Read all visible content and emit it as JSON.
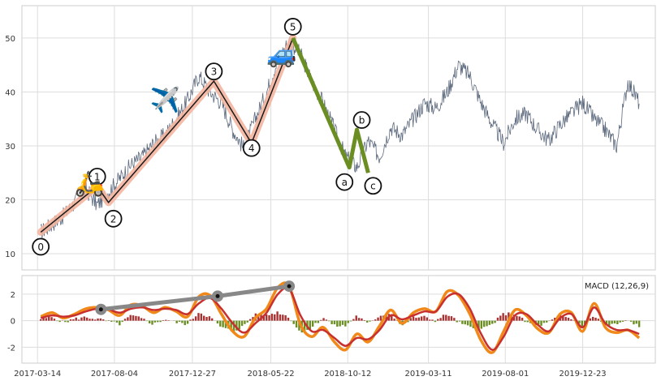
{
  "chart_data": [
    {
      "type": "line",
      "title": "",
      "xlabel": "",
      "ylabel": "",
      "ylim": [
        7,
        56
      ],
      "yticks": [
        10,
        20,
        30,
        40,
        50
      ],
      "grid": true,
      "series": [
        {
          "role": "price",
          "color": "#5d6a7e",
          "x": [
            "2017-03-20",
            "2017-04-10",
            "2017-05-01",
            "2017-05-22",
            "2017-06-12",
            "2017-07-03",
            "2017-07-24",
            "2017-08-14",
            "2017-09-04",
            "2017-09-25",
            "2017-10-16",
            "2017-11-06",
            "2017-11-27",
            "2017-12-18",
            "2018-01-08",
            "2018-01-29",
            "2018-02-19",
            "2018-03-12",
            "2018-04-02",
            "2018-04-23",
            "2018-05-14",
            "2018-06-04",
            "2018-06-25",
            "2018-07-16",
            "2018-08-06",
            "2018-08-27",
            "2018-09-17",
            "2018-10-08",
            "2018-10-29",
            "2018-11-19",
            "2018-12-10",
            "2018-12-31",
            "2019-01-21",
            "2019-02-11",
            "2019-03-04",
            "2019-03-25",
            "2019-04-15",
            "2019-05-06",
            "2019-05-27",
            "2019-06-17",
            "2019-07-08",
            "2019-07-29",
            "2019-08-19",
            "2019-09-09",
            "2019-09-30",
            "2019-10-21",
            "2019-11-11",
            "2019-12-02",
            "2019-12-23",
            "2020-01-13",
            "2020-02-03",
            "2020-02-24",
            "2020-03-16",
            "2020-04-06"
          ],
          "y": [
            14.0,
            15.5,
            17.0,
            19.5,
            22.0,
            19.0,
            21.5,
            24.0,
            26.5,
            28.0,
            30.5,
            32.0,
            35.0,
            38.5,
            43.0,
            40.0,
            38.0,
            33.0,
            29.5,
            35.0,
            40.0,
            46.0,
            49.5,
            47.0,
            42.0,
            38.0,
            33.0,
            28.0,
            26.0,
            31.0,
            28.0,
            33.5,
            32.0,
            35.0,
            38.0,
            37.0,
            40.0,
            45.0,
            43.0,
            38.0,
            34.0,
            30.5,
            35.0,
            36.0,
            33.0,
            31.0,
            34.0,
            36.0,
            38.0,
            35.0,
            33.0,
            30.0,
            42.0,
            38.0
          ]
        },
        {
          "role": "elliott-wave-impulse",
          "color": "#1a1a1a",
          "highlight_color": "#f4b6a0",
          "points": [
            {
              "label": "0",
              "x": "2017-03-20",
              "y": 14
            },
            {
              "label": "1",
              "x": "2017-07-03",
              "y": 22.5
            },
            {
              "label": "2",
              "x": "2017-07-24",
              "y": 19.5
            },
            {
              "label": "3",
              "x": "2018-02-05",
              "y": 42
            },
            {
              "label": "4",
              "x": "2018-04-16",
              "y": 30.5
            },
            {
              "label": "5",
              "x": "2018-07-02",
              "y": 50
            }
          ]
        },
        {
          "role": "elliott-wave-correction",
          "color": "#6b8e23",
          "points": [
            {
              "label": "a",
              "x": "2018-10-15",
              "y": 26
            },
            {
              "label": "b",
              "x": "2018-10-29",
              "y": 33
            },
            {
              "label": "c",
              "x": "2018-11-19",
              "y": 25
            }
          ]
        }
      ],
      "markers": [
        {
          "icon": "scooter-icon",
          "emoji": "🛵",
          "x": "2017-06-19",
          "y": 21.5
        },
        {
          "icon": "airplane-icon",
          "emoji": "✈️",
          "x": "2017-11-06",
          "y": 37
        },
        {
          "icon": "car-icon",
          "emoji": "🚙",
          "x": "2018-06-11",
          "y": 45.5
        }
      ]
    },
    {
      "type": "line",
      "title": "",
      "legend": "MACD (12,26,9)",
      "legend_position": "top-right",
      "ylim": [
        -3.2,
        3.4
      ],
      "yticks": [
        -2,
        0,
        2
      ],
      "grid": true,
      "xticks": [
        "2017-03-14",
        "2017-08-04",
        "2017-12-27",
        "2018-05-22",
        "2018-10-12",
        "2019-03-11",
        "2019-08-01",
        "2019-12-23"
      ],
      "series": [
        {
          "name": "MACD",
          "color": "#f0891a",
          "x": [
            "2017-03-20",
            "2017-04-10",
            "2017-05-01",
            "2017-05-22",
            "2017-06-12",
            "2017-07-03",
            "2017-07-24",
            "2017-08-14",
            "2017-09-04",
            "2017-09-25",
            "2017-10-16",
            "2017-11-06",
            "2017-11-27",
            "2017-12-18",
            "2018-01-08",
            "2018-01-29",
            "2018-02-19",
            "2018-03-12",
            "2018-04-02",
            "2018-04-23",
            "2018-05-14",
            "2018-06-04",
            "2018-06-25",
            "2018-07-16",
            "2018-08-06",
            "2018-08-27",
            "2018-09-17",
            "2018-10-08",
            "2018-10-29",
            "2018-11-19",
            "2018-12-10",
            "2018-12-31",
            "2019-01-21",
            "2019-02-11",
            "2019-03-04",
            "2019-03-25",
            "2019-04-15",
            "2019-05-06",
            "2019-05-27",
            "2019-06-17",
            "2019-07-08",
            "2019-07-29",
            "2019-08-19",
            "2019-09-09",
            "2019-09-30",
            "2019-10-21",
            "2019-11-11",
            "2019-12-02",
            "2019-12-23",
            "2020-01-13",
            "2020-02-03",
            "2020-02-24",
            "2020-03-16",
            "2020-04-06"
          ],
          "y": [
            0.3,
            0.6,
            0.2,
            0.5,
            0.9,
            1.0,
            0.8,
            0.4,
            1.2,
            1.1,
            0.6,
            1.0,
            0.7,
            0.3,
            1.8,
            1.9,
            0.5,
            -0.8,
            -1.2,
            0.2,
            0.9,
            2.5,
            2.6,
            -0.3,
            -1.2,
            -0.5,
            -1.6,
            -2.2,
            -1.0,
            -1.6,
            -0.4,
            0.8,
            -0.2,
            0.6,
            0.9,
            0.7,
            2.2,
            1.9,
            0.5,
            -1.5,
            -2.4,
            -0.8,
            0.8,
            0.4,
            -0.6,
            -0.9,
            0.5,
            0.6,
            -0.8,
            1.3,
            -0.5,
            -0.9,
            -0.7,
            -1.3
          ]
        },
        {
          "name": "Signal",
          "color": "#c8302e",
          "x": [
            "2017-03-20",
            "2017-04-10",
            "2017-05-01",
            "2017-05-22",
            "2017-06-12",
            "2017-07-03",
            "2017-07-24",
            "2017-08-14",
            "2017-09-04",
            "2017-09-25",
            "2017-10-16",
            "2017-11-06",
            "2017-11-27",
            "2017-12-18",
            "2018-01-08",
            "2018-01-29",
            "2018-02-19",
            "2018-03-12",
            "2018-04-02",
            "2018-04-23",
            "2018-05-14",
            "2018-06-04",
            "2018-06-25",
            "2018-07-16",
            "2018-08-06",
            "2018-08-27",
            "2018-09-17",
            "2018-10-08",
            "2018-10-29",
            "2018-11-19",
            "2018-12-10",
            "2018-12-31",
            "2019-01-21",
            "2019-02-11",
            "2019-03-04",
            "2019-03-25",
            "2019-04-15",
            "2019-05-06",
            "2019-05-27",
            "2019-06-17",
            "2019-07-08",
            "2019-07-29",
            "2019-08-19",
            "2019-09-09",
            "2019-09-30",
            "2019-10-21",
            "2019-11-11",
            "2019-12-02",
            "2019-12-23",
            "2020-01-13",
            "2020-02-03",
            "2020-02-24",
            "2020-03-16",
            "2020-04-06"
          ],
          "y": [
            0.2,
            0.4,
            0.3,
            0.4,
            0.7,
            0.9,
            0.85,
            0.6,
            0.9,
            1.0,
            0.8,
            0.9,
            0.8,
            0.5,
            1.3,
            1.7,
            0.9,
            -0.2,
            -0.9,
            -0.2,
            0.6,
            2.0,
            2.4,
            0.4,
            -0.8,
            -0.7,
            -1.3,
            -1.9,
            -1.3,
            -1.4,
            -0.7,
            0.4,
            0.1,
            0.4,
            0.7,
            0.7,
            1.8,
            2.0,
            0.9,
            -1.0,
            -2.2,
            -1.2,
            0.4,
            0.5,
            -0.3,
            -0.8,
            0.2,
            0.5,
            -0.5,
            1.0,
            -0.2,
            -0.7,
            -0.7,
            -1.0
          ]
        }
      ],
      "histogram": {
        "positive_color": "#a83232",
        "negative_color": "#6b8e23"
      },
      "trendline": {
        "color": "#888888",
        "points": [
          {
            "x": "2017-07-10",
            "y": 0.85
          },
          {
            "x": "2018-02-12",
            "y": 1.85
          },
          {
            "x": "2018-06-25",
            "y": 2.6
          }
        ]
      }
    }
  ]
}
